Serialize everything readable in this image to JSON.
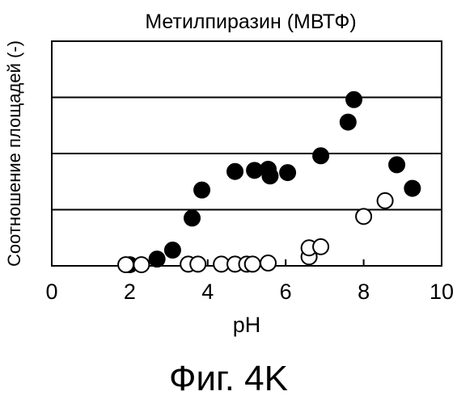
{
  "chart_data": {
    "type": "scatter",
    "title": "Метилпиразин (МВТФ)",
    "xlabel": "pH",
    "ylabel": "Соотношение площадей (-)",
    "xlim": [
      0,
      10
    ],
    "ylim": [
      0,
      4
    ],
    "xticks": [
      "0",
      "2",
      "4",
      "6",
      "8",
      "10"
    ],
    "grid": "horizontal",
    "series": [
      {
        "marker": "filled",
        "color": "#000000",
        "points": [
          [
            2.0,
            0.02
          ],
          [
            2.7,
            0.12
          ],
          [
            3.1,
            0.28
          ],
          [
            3.6,
            0.85
          ],
          [
            3.85,
            1.35
          ],
          [
            4.7,
            1.68
          ],
          [
            5.2,
            1.7
          ],
          [
            5.55,
            1.72
          ],
          [
            5.6,
            1.6
          ],
          [
            6.05,
            1.66
          ],
          [
            6.9,
            1.96
          ],
          [
            7.6,
            2.56
          ],
          [
            7.75,
            2.96
          ],
          [
            8.85,
            1.8
          ],
          [
            9.25,
            1.38
          ]
        ]
      },
      {
        "marker": "open",
        "color": "#000000",
        "points": [
          [
            1.9,
            0.02
          ],
          [
            2.3,
            0.02
          ],
          [
            3.5,
            0.03
          ],
          [
            3.75,
            0.03
          ],
          [
            4.35,
            0.03
          ],
          [
            4.7,
            0.03
          ],
          [
            5.0,
            0.03
          ],
          [
            5.15,
            0.03
          ],
          [
            5.55,
            0.05
          ],
          [
            6.6,
            0.16
          ],
          [
            6.6,
            0.32
          ],
          [
            6.9,
            0.34
          ],
          [
            8.0,
            0.88
          ],
          [
            8.55,
            1.16
          ]
        ]
      }
    ]
  },
  "figure": {
    "caption": "Фиг. 4K"
  }
}
